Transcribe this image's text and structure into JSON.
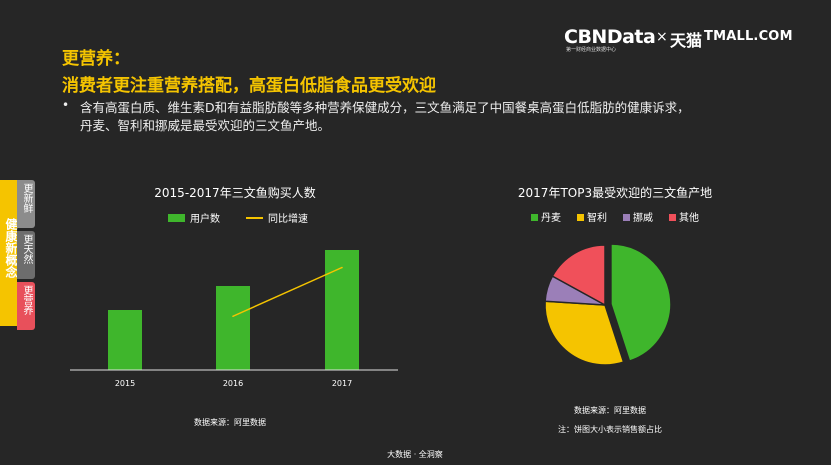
{
  "logo": {
    "brand": "CBNData",
    "brand_sub": "第一财经商业数据中心",
    "times": "×",
    "partner_cn": "天猫",
    "partner_en": "TMALL.COM"
  },
  "heading": {
    "line1": "更营养：",
    "line2": "消费者更注重营养搭配，高蛋白低脂食品更受欢迎"
  },
  "description": {
    "bullet": "•",
    "line1": "含有高蛋白质、维生素D和有益脂肪酸等多种营养保健成分，三文鱼满足了中国餐桌高蛋白低脂肪的健康诉求，",
    "line2": "丹麦、智利和挪威是最受欢迎的三文鱼产地。"
  },
  "sidebar": {
    "main_label": "健康新概念",
    "tabs": [
      {
        "label": "更新鲜",
        "color": "#8c8c8c"
      },
      {
        "label": "更天然",
        "color": "#6d6d6d"
      },
      {
        "label": "更营养",
        "color": "#e8505b"
      }
    ]
  },
  "chart_data": [
    {
      "type": "bar",
      "title": "2015-2017年三文鱼购买人数",
      "categories": [
        "2015",
        "2016",
        "2017"
      ],
      "series": [
        {
          "name": "用户数",
          "kind": "bar",
          "values": [
            1.0,
            1.4,
            2.0
          ],
          "color": "#3fb62c"
        },
        {
          "name": "同比增速",
          "kind": "line",
          "x": [
            "2016",
            "2017"
          ],
          "values": [
            0.4,
            0.43
          ],
          "color": "#f5c400"
        }
      ],
      "y_axis_visible": false,
      "grid": false,
      "legend": "top",
      "source": "数据来源：阿里数据"
    },
    {
      "type": "pie",
      "title": "2017年TOP3最受欢迎的三文鱼产地",
      "labels": [
        "丹麦",
        "智利",
        "挪威",
        "其他"
      ],
      "values": [
        45,
        31,
        7,
        17
      ],
      "colors": [
        "#3fb62c",
        "#f5c400",
        "#9b7fb8",
        "#f0505a"
      ],
      "legend": "top",
      "source": "数据来源：阿里数据",
      "note": "注：饼图大小表示销售额占比"
    }
  ],
  "footer": "大数据 · 全洞察"
}
